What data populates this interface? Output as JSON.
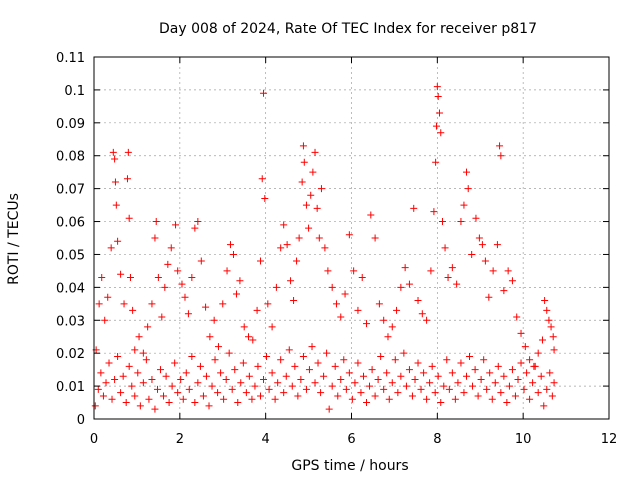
{
  "chart_data": {
    "type": "scatter",
    "title": "Day 008 of 2024, Rate Of TEC Index for receiver p817",
    "xlabel": "GPS time / hours",
    "ylabel": "ROTI / TECUs",
    "xlim": [
      0,
      12
    ],
    "ylim": [
      0,
      0.11
    ],
    "xticks": [
      0,
      2,
      4,
      6,
      8,
      10,
      12
    ],
    "yticks": [
      0,
      0.01,
      0.02,
      0.03,
      0.04,
      0.05,
      0.06,
      0.07,
      0.08,
      0.09,
      0.1,
      0.11
    ],
    "ytick_labels": [
      "0",
      "0.01",
      "0.02",
      "0.03",
      "0.04",
      "0.05",
      "0.06",
      "0.07",
      "0.08",
      "0.09",
      "0.1",
      "0.11"
    ],
    "grid": true,
    "marker": "plus",
    "color": "#ff0000",
    "series": [
      {
        "name": "ROTI",
        "points": [
          [
            0.05,
            0.021
          ],
          [
            0.12,
            0.035
          ],
          [
            0.18,
            0.043
          ],
          [
            0.25,
            0.03
          ],
          [
            0.32,
            0.037
          ],
          [
            0.4,
            0.052
          ],
          [
            0.45,
            0.081
          ],
          [
            0.48,
            0.079
          ],
          [
            0.5,
            0.072
          ],
          [
            0.52,
            0.065
          ],
          [
            0.55,
            0.054
          ],
          [
            0.62,
            0.044
          ],
          [
            0.7,
            0.035
          ],
          [
            0.78,
            0.073
          ],
          [
            0.8,
            0.081
          ],
          [
            0.82,
            0.061
          ],
          [
            0.85,
            0.043
          ],
          [
            0.9,
            0.033
          ],
          [
            0.95,
            0.021
          ],
          [
            1.05,
            0.025
          ],
          [
            1.15,
            0.02
          ],
          [
            1.25,
            0.028
          ],
          [
            1.35,
            0.035
          ],
          [
            1.42,
            0.055
          ],
          [
            1.45,
            0.06
          ],
          [
            1.5,
            0.043
          ],
          [
            1.58,
            0.031
          ],
          [
            1.65,
            0.04
          ],
          [
            1.72,
            0.047
          ],
          [
            1.8,
            0.052
          ],
          [
            1.9,
            0.059
          ],
          [
            1.95,
            0.045
          ],
          [
            2.05,
            0.041
          ],
          [
            2.12,
            0.037
          ],
          [
            2.2,
            0.032
          ],
          [
            2.28,
            0.043
          ],
          [
            2.35,
            0.058
          ],
          [
            2.42,
            0.06
          ],
          [
            2.5,
            0.048
          ],
          [
            2.6,
            0.034
          ],
          [
            2.7,
            0.025
          ],
          [
            2.8,
            0.03
          ],
          [
            2.9,
            0.022
          ],
          [
            3.0,
            0.035
          ],
          [
            3.1,
            0.045
          ],
          [
            3.18,
            0.053
          ],
          [
            3.25,
            0.05
          ],
          [
            3.32,
            0.038
          ],
          [
            3.4,
            0.042
          ],
          [
            3.5,
            0.028
          ],
          [
            3.6,
            0.025
          ],
          [
            3.7,
            0.024
          ],
          [
            3.8,
            0.033
          ],
          [
            3.88,
            0.048
          ],
          [
            3.92,
            0.073
          ],
          [
            3.95,
            0.099
          ],
          [
            3.98,
            0.067
          ],
          [
            4.05,
            0.035
          ],
          [
            4.15,
            0.028
          ],
          [
            4.25,
            0.04
          ],
          [
            4.35,
            0.052
          ],
          [
            4.42,
            0.059
          ],
          [
            4.5,
            0.053
          ],
          [
            4.58,
            0.042
          ],
          [
            4.65,
            0.036
          ],
          [
            4.72,
            0.048
          ],
          [
            4.78,
            0.055
          ],
          [
            4.85,
            0.072
          ],
          [
            4.88,
            0.083
          ],
          [
            4.9,
            0.078
          ],
          [
            4.95,
            0.065
          ],
          [
            5.0,
            0.058
          ],
          [
            5.05,
            0.068
          ],
          [
            5.1,
            0.075
          ],
          [
            5.15,
            0.081
          ],
          [
            5.2,
            0.064
          ],
          [
            5.25,
            0.055
          ],
          [
            5.3,
            0.07
          ],
          [
            5.38,
            0.052
          ],
          [
            5.45,
            0.045
          ],
          [
            5.55,
            0.04
          ],
          [
            5.65,
            0.035
          ],
          [
            5.75,
            0.031
          ],
          [
            5.85,
            0.038
          ],
          [
            5.95,
            0.056
          ],
          [
            6.05,
            0.045
          ],
          [
            6.15,
            0.033
          ],
          [
            6.25,
            0.043
          ],
          [
            6.35,
            0.029
          ],
          [
            6.45,
            0.062
          ],
          [
            6.55,
            0.055
          ],
          [
            6.65,
            0.035
          ],
          [
            6.75,
            0.03
          ],
          [
            6.85,
            0.025
          ],
          [
            6.95,
            0.028
          ],
          [
            7.05,
            0.033
          ],
          [
            7.15,
            0.04
          ],
          [
            7.25,
            0.046
          ],
          [
            7.35,
            0.041
          ],
          [
            7.45,
            0.064
          ],
          [
            7.55,
            0.036
          ],
          [
            7.65,
            0.032
          ],
          [
            7.75,
            0.03
          ],
          [
            7.85,
            0.045
          ],
          [
            7.92,
            0.063
          ],
          [
            7.96,
            0.078
          ],
          [
            7.98,
            0.089
          ],
          [
            8.0,
            0.101
          ],
          [
            8.02,
            0.098
          ],
          [
            8.05,
            0.093
          ],
          [
            8.08,
            0.087
          ],
          [
            8.12,
            0.06
          ],
          [
            8.18,
            0.052
          ],
          [
            8.25,
            0.043
          ],
          [
            8.35,
            0.046
          ],
          [
            8.45,
            0.041
          ],
          [
            8.55,
            0.06
          ],
          [
            8.62,
            0.065
          ],
          [
            8.68,
            0.075
          ],
          [
            8.72,
            0.07
          ],
          [
            8.8,
            0.05
          ],
          [
            8.9,
            0.061
          ],
          [
            8.98,
            0.055
          ],
          [
            9.05,
            0.053
          ],
          [
            9.12,
            0.048
          ],
          [
            9.2,
            0.037
          ],
          [
            9.3,
            0.045
          ],
          [
            9.4,
            0.053
          ],
          [
            9.45,
            0.083
          ],
          [
            9.48,
            0.08
          ],
          [
            9.55,
            0.039
          ],
          [
            9.65,
            0.045
          ],
          [
            9.75,
            0.042
          ],
          [
            9.85,
            0.031
          ],
          [
            9.95,
            0.026
          ],
          [
            10.05,
            0.022
          ],
          [
            10.15,
            0.018
          ],
          [
            10.25,
            0.016
          ],
          [
            10.35,
            0.02
          ],
          [
            10.45,
            0.024
          ],
          [
            10.5,
            0.036
          ],
          [
            10.55,
            0.033
          ],
          [
            10.6,
            0.03
          ],
          [
            10.65,
            0.028
          ],
          [
            10.7,
            0.025
          ],
          [
            10.72,
            0.021
          ]
        ],
        "points_low": [
          [
            0.03,
            0.004
          ],
          [
            0.1,
            0.009
          ],
          [
            0.16,
            0.014
          ],
          [
            0.22,
            0.007
          ],
          [
            0.28,
            0.011
          ],
          [
            0.35,
            0.017
          ],
          [
            0.42,
            0.006
          ],
          [
            0.48,
            0.012
          ],
          [
            0.55,
            0.019
          ],
          [
            0.62,
            0.008
          ],
          [
            0.68,
            0.013
          ],
          [
            0.75,
            0.005
          ],
          [
            0.82,
            0.016
          ],
          [
            0.88,
            0.01
          ],
          [
            0.95,
            0.007
          ],
          [
            1.02,
            0.014
          ],
          [
            1.08,
            0.004
          ],
          [
            1.15,
            0.011
          ],
          [
            1.22,
            0.018
          ],
          [
            1.28,
            0.006
          ],
          [
            1.35,
            0.012
          ],
          [
            1.42,
            0.003
          ],
          [
            1.48,
            0.009
          ],
          [
            1.55,
            0.015
          ],
          [
            1.62,
            0.007
          ],
          [
            1.68,
            0.013
          ],
          [
            1.75,
            0.005
          ],
          [
            1.82,
            0.01
          ],
          [
            1.88,
            0.017
          ],
          [
            1.95,
            0.008
          ],
          [
            2.02,
            0.012
          ],
          [
            2.08,
            0.006
          ],
          [
            2.15,
            0.014
          ],
          [
            2.22,
            0.009
          ],
          [
            2.28,
            0.019
          ],
          [
            2.35,
            0.005
          ],
          [
            2.42,
            0.011
          ],
          [
            2.48,
            0.016
          ],
          [
            2.55,
            0.007
          ],
          [
            2.62,
            0.013
          ],
          [
            2.68,
            0.004
          ],
          [
            2.75,
            0.01
          ],
          [
            2.82,
            0.018
          ],
          [
            2.88,
            0.008
          ],
          [
            2.95,
            0.014
          ],
          [
            3.02,
            0.006
          ],
          [
            3.08,
            0.012
          ],
          [
            3.15,
            0.02
          ],
          [
            3.22,
            0.009
          ],
          [
            3.28,
            0.015
          ],
          [
            3.35,
            0.005
          ],
          [
            3.42,
            0.011
          ],
          [
            3.48,
            0.017
          ],
          [
            3.55,
            0.008
          ],
          [
            3.62,
            0.013
          ],
          [
            3.68,
            0.006
          ],
          [
            3.75,
            0.01
          ],
          [
            3.82,
            0.016
          ],
          [
            3.88,
            0.007
          ],
          [
            3.95,
            0.012
          ],
          [
            4.02,
            0.019
          ],
          [
            4.08,
            0.009
          ],
          [
            4.15,
            0.014
          ],
          [
            4.22,
            0.006
          ],
          [
            4.28,
            0.011
          ],
          [
            4.35,
            0.018
          ],
          [
            4.42,
            0.008
          ],
          [
            4.48,
            0.013
          ],
          [
            4.55,
            0.021
          ],
          [
            4.62,
            0.01
          ],
          [
            4.68,
            0.016
          ],
          [
            4.75,
            0.007
          ],
          [
            4.82,
            0.012
          ],
          [
            4.88,
            0.019
          ],
          [
            4.95,
            0.009
          ],
          [
            5.02,
            0.015
          ],
          [
            5.08,
            0.022
          ],
          [
            5.15,
            0.011
          ],
          [
            5.22,
            0.017
          ],
          [
            5.28,
            0.008
          ],
          [
            5.35,
            0.013
          ],
          [
            5.42,
            0.02
          ],
          [
            5.48,
            0.003
          ],
          [
            5.55,
            0.01
          ],
          [
            5.62,
            0.016
          ],
          [
            5.68,
            0.007
          ],
          [
            5.75,
            0.012
          ],
          [
            5.82,
            0.018
          ],
          [
            5.88,
            0.009
          ],
          [
            5.95,
            0.014
          ],
          [
            6.02,
            0.006
          ],
          [
            6.08,
            0.011
          ],
          [
            6.15,
            0.017
          ],
          [
            6.22,
            0.008
          ],
          [
            6.28,
            0.013
          ],
          [
            6.35,
            0.005
          ],
          [
            6.42,
            0.01
          ],
          [
            6.48,
            0.015
          ],
          [
            6.55,
            0.007
          ],
          [
            6.62,
            0.012
          ],
          [
            6.68,
            0.019
          ],
          [
            6.75,
            0.009
          ],
          [
            6.82,
            0.014
          ],
          [
            6.88,
            0.006
          ],
          [
            6.95,
            0.011
          ],
          [
            7.02,
            0.018
          ],
          [
            7.08,
            0.008
          ],
          [
            7.15,
            0.013
          ],
          [
            7.22,
            0.02
          ],
          [
            7.28,
            0.01
          ],
          [
            7.35,
            0.015
          ],
          [
            7.42,
            0.007
          ],
          [
            7.48,
            0.012
          ],
          [
            7.55,
            0.017
          ],
          [
            7.62,
            0.009
          ],
          [
            7.68,
            0.014
          ],
          [
            7.75,
            0.006
          ],
          [
            7.82,
            0.011
          ],
          [
            7.88,
            0.016
          ],
          [
            7.95,
            0.008
          ],
          [
            8.02,
            0.013
          ],
          [
            8.08,
            0.005
          ],
          [
            8.15,
            0.01
          ],
          [
            8.22,
            0.018
          ],
          [
            8.28,
            0.009
          ],
          [
            8.35,
            0.014
          ],
          [
            8.42,
            0.006
          ],
          [
            8.48,
            0.011
          ],
          [
            8.55,
            0.017
          ],
          [
            8.62,
            0.008
          ],
          [
            8.68,
            0.013
          ],
          [
            8.75,
            0.019
          ],
          [
            8.82,
            0.01
          ],
          [
            8.88,
            0.015
          ],
          [
            8.95,
            0.007
          ],
          [
            9.02,
            0.012
          ],
          [
            9.08,
            0.018
          ],
          [
            9.15,
            0.009
          ],
          [
            9.22,
            0.014
          ],
          [
            9.28,
            0.006
          ],
          [
            9.35,
            0.011
          ],
          [
            9.42,
            0.016
          ],
          [
            9.48,
            0.008
          ],
          [
            9.55,
            0.013
          ],
          [
            9.62,
            0.005
          ],
          [
            9.68,
            0.01
          ],
          [
            9.75,
            0.015
          ],
          [
            9.82,
            0.007
          ],
          [
            9.88,
            0.012
          ],
          [
            9.95,
            0.017
          ],
          [
            10.02,
            0.009
          ],
          [
            10.08,
            0.014
          ],
          [
            10.15,
            0.006
          ],
          [
            10.22,
            0.011
          ],
          [
            10.28,
            0.016
          ],
          [
            10.35,
            0.008
          ],
          [
            10.42,
            0.013
          ],
          [
            10.48,
            0.004
          ],
          [
            10.55,
            0.009
          ],
          [
            10.62,
            0.014
          ],
          [
            10.68,
            0.007
          ],
          [
            10.72,
            0.011
          ]
        ]
      }
    ]
  }
}
